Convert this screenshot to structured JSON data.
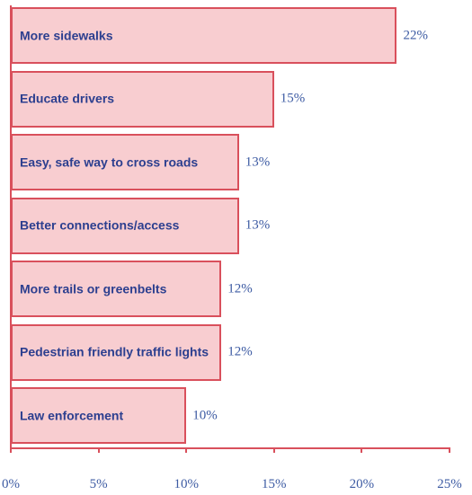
{
  "chart_data": {
    "type": "bar",
    "orientation": "horizontal",
    "categories": [
      "More sidewalks",
      "Educate drivers",
      "Easy, safe way to cross roads",
      "Better connections/access",
      "More trails or greenbelts",
      "Pedestrian friendly traffic lights",
      "Law enforcement"
    ],
    "values": [
      22,
      15,
      13,
      13,
      12,
      12,
      10
    ],
    "value_labels": [
      "22%",
      "15%",
      "13%",
      "13%",
      "12%",
      "12%",
      "10%"
    ],
    "color": "#f8cdd0",
    "xlim": [
      0,
      25
    ],
    "xticks": [
      {
        "value": 0,
        "label": "0%"
      },
      {
        "value": 5,
        "label": "5%"
      },
      {
        "value": 10,
        "label": "10%"
      },
      {
        "value": 15,
        "label": "15%"
      },
      {
        "value": 20,
        "label": "20%"
      },
      {
        "value": 25,
        "label": "25%"
      }
    ]
  }
}
